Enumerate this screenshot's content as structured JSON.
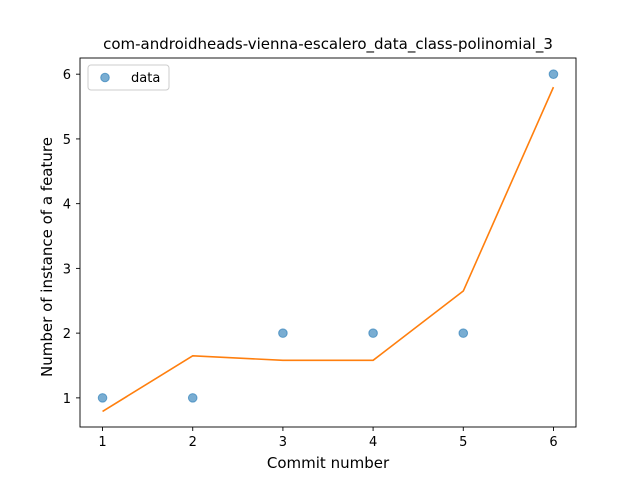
{
  "chart_data": {
    "type": "scatter",
    "title": "com-androidheads-vienna-escalero_data_class-polinomial_3",
    "xlabel": "Commit number",
    "ylabel": "Number of instance of a feature",
    "xlim": [
      0.75,
      6.25
    ],
    "ylim": [
      0.55,
      6.25
    ],
    "xticks": [
      1,
      2,
      3,
      4,
      5,
      6
    ],
    "yticks": [
      1,
      2,
      3,
      4,
      5,
      6
    ],
    "legend_position": "top-left",
    "grid": false,
    "series": [
      {
        "name": "data",
        "kind": "scatter",
        "color": "#1f77b4",
        "x": [
          1,
          2,
          3,
          4,
          5,
          6
        ],
        "y": [
          1,
          1,
          2,
          2,
          2,
          6
        ]
      },
      {
        "kind": "line",
        "color": "#ff7f0e",
        "x": [
          1,
          2,
          3,
          4,
          5,
          6
        ],
        "y": [
          0.79,
          1.65,
          1.58,
          1.58,
          2.65,
          5.8
        ]
      }
    ]
  }
}
